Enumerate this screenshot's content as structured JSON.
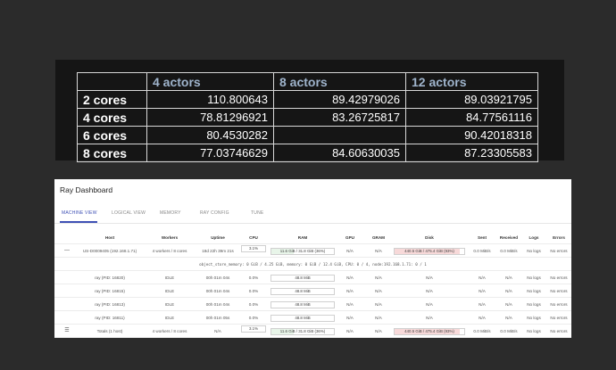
{
  "table": {
    "headers": [
      "",
      "4 actors",
      "8 actors",
      "12 actors"
    ],
    "rows": [
      {
        "label": "2 cores",
        "values": [
          "110.800643",
          "89.42979026",
          "89.03921795"
        ]
      },
      {
        "label": "4 cores",
        "values": [
          "78.81296921",
          "83.26725817",
          "84.77561116"
        ]
      },
      {
        "label": "6 cores",
        "values": [
          "80.4530282",
          "",
          "90.42018318"
        ]
      },
      {
        "label": "8 cores",
        "values": [
          "77.03746629",
          "84.60630035",
          "87.23305583"
        ]
      }
    ]
  },
  "dashboard": {
    "title": "Ray Dashboard",
    "tabs": [
      "MACHINE VIEW",
      "LOGICAL VIEW",
      "MEMORY",
      "RAY CONFIG",
      "TUNE"
    ],
    "columns": [
      "Host",
      "Workers",
      "Uptime",
      "CPU",
      "RAM",
      "GPU",
      "GRAM",
      "Disk",
      "Sent",
      "Received",
      "Logs",
      "Errors"
    ],
    "node": {
      "host": "US-D0009405 (192.168.1.71)",
      "workers": "4 workers / 8 cores",
      "uptime": "18d 22h 39m 21s",
      "cpu": "3.1%",
      "ram": "11.6 GiB / 31.8 GiB (36%)",
      "ram_fraction": 0.36,
      "gpu": "N/A",
      "gram": "N/A",
      "disk": "440.5 GiB / 475.4 GiB (93%)",
      "disk_fraction": 0.93,
      "sent": "0.0 MiB/s",
      "received": "0.0 MiB/s",
      "logs": "No logs",
      "errors": "No errors"
    },
    "memory_line": "object_store_memory: 0 GiB / 4.25 GiB, memory: 0 GiB / 12.4 GiB, CPU: 0 / 4, node:192.168.1.71: 0 / 1",
    "workers": [
      {
        "host": "ray (PID: 16820)",
        "state": "IDLE",
        "uptime": "00h 01m 04s",
        "cpu": "0.0%",
        "ram": "48.8 MiB"
      },
      {
        "host": "ray (PID: 16815)",
        "state": "IDLE",
        "uptime": "00h 01m 04s",
        "cpu": "0.0%",
        "ram": "48.8 MiB"
      },
      {
        "host": "ray (PID: 16813)",
        "state": "IDLE",
        "uptime": "00h 01m 04s",
        "cpu": "0.0%",
        "ram": "48.8 MiB"
      },
      {
        "host": "ray (PID: 16811)",
        "state": "IDLE",
        "uptime": "00h 01m 05s",
        "cpu": "0.0%",
        "ram": "48.8 MiB"
      }
    ],
    "worker_na": "N/A",
    "worker_logs": "No logs",
    "worker_errors": "No errors",
    "totals": {
      "host": "Totals (1 host)",
      "workers": "4 workers / 8 cores",
      "uptime": "N/A",
      "cpu": "3.1%",
      "ram": "11.6 GiB / 31.8 GiB (36%)",
      "gpu": "N/A",
      "gram": "N/A",
      "disk": "440.5 GiB / 475.4 GiB (93%)",
      "sent": "0.0 MiB/s",
      "received": "0.0 MiB/s",
      "logs": "No logs",
      "errors": "No errors"
    },
    "colors": {
      "ram_fill": "#e8f5e9",
      "disk_fill": "#f7d9d9",
      "accent": "#3f51b5"
    }
  }
}
